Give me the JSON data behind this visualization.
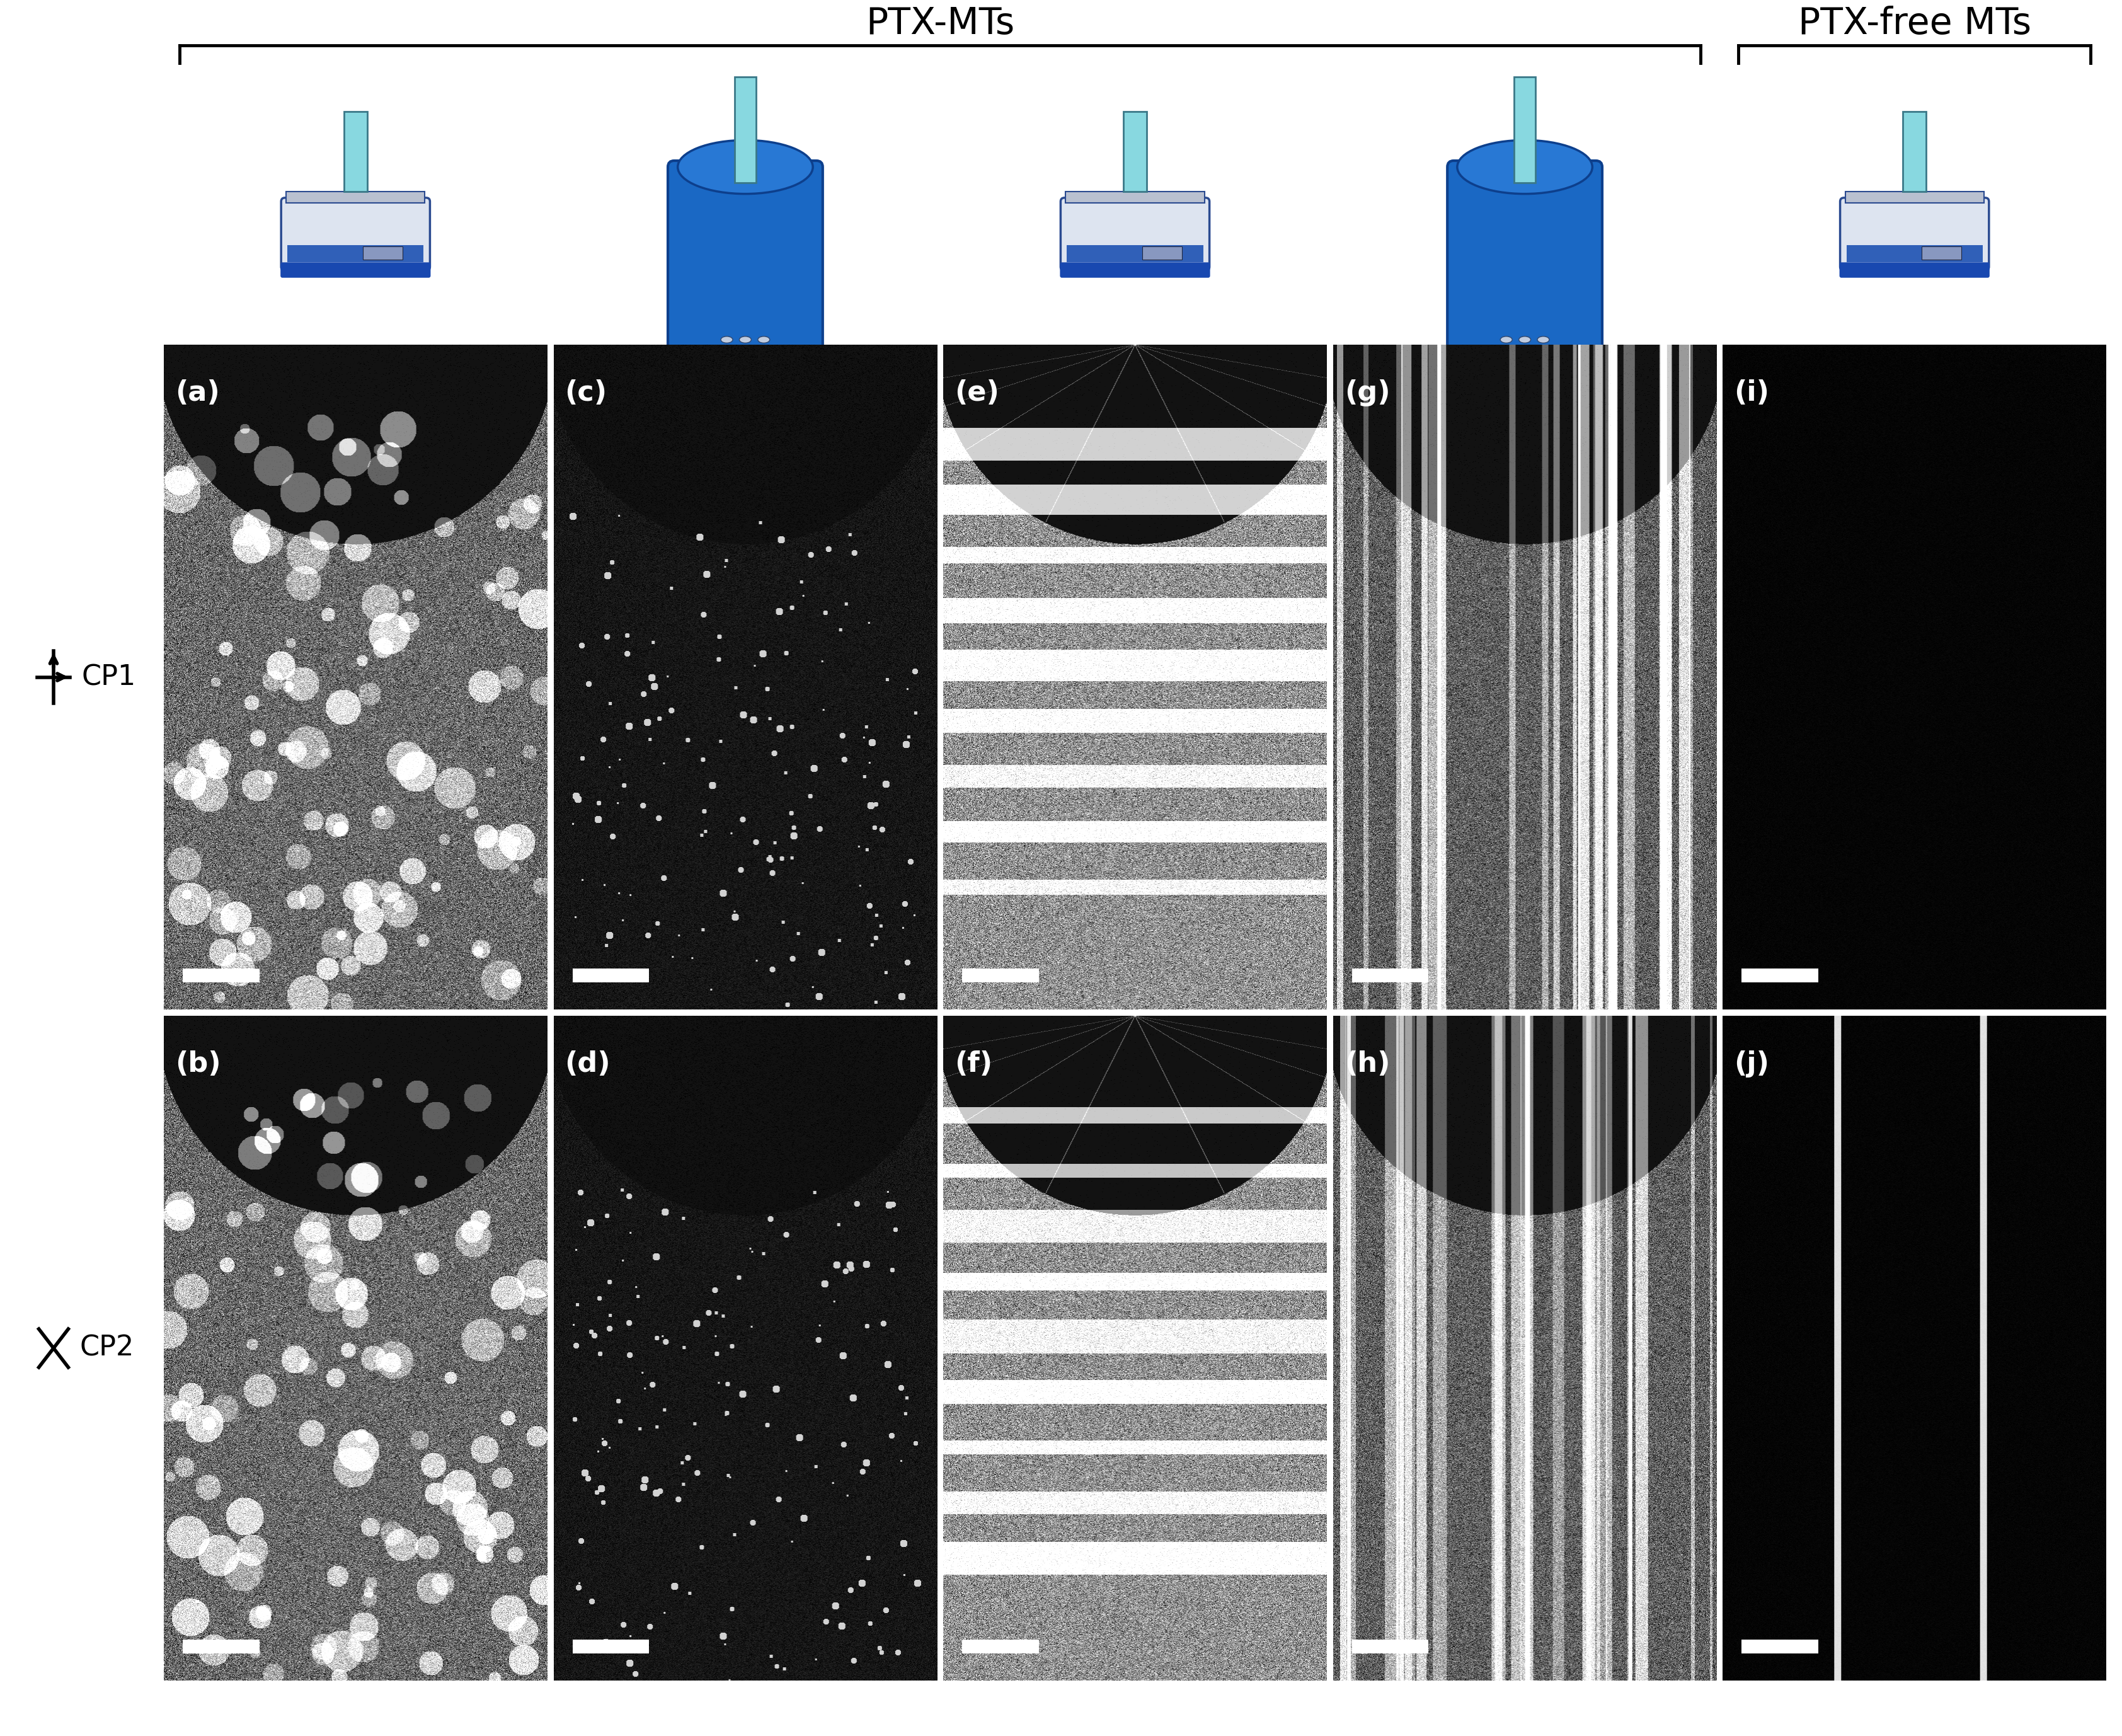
{
  "background_color": "#ffffff",
  "text_color": "#000000",
  "header_ptx": "PTX-MTs",
  "header_ptxfree": "PTX-free MTs",
  "row_label_1": "CP1",
  "row_label_2": "CP2",
  "col_labels_row1": [
    "(a)",
    "(c)",
    "(e)",
    "(g)",
    "(i)"
  ],
  "col_labels_row2": [
    "(b)",
    "(d)",
    "(f)",
    "(h)",
    "(j)"
  ],
  "label_fontsize": 32,
  "header_fontsize": 42,
  "scalebar_color": "#ffffff"
}
